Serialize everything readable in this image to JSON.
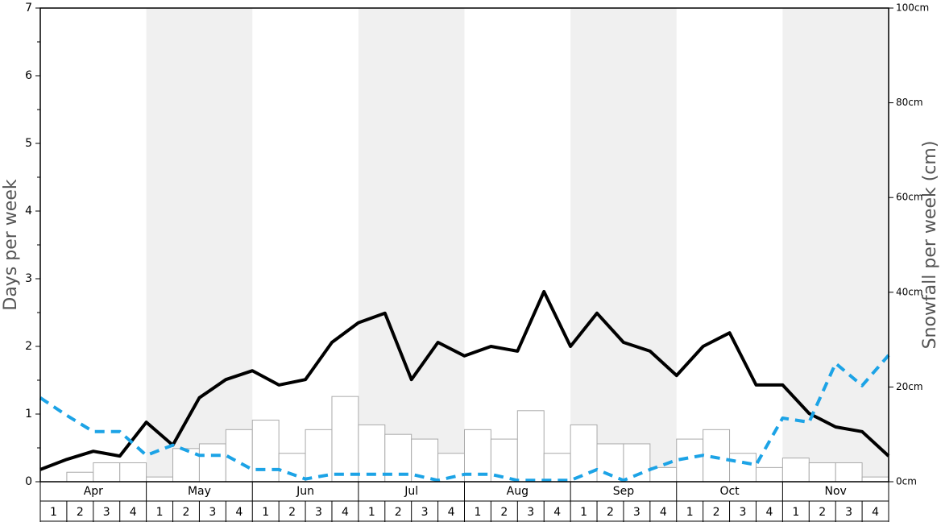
{
  "chart_data": {
    "type": "bar",
    "y_label": "Days per week",
    "y2_label": "Snowfall per week (cm)",
    "months": [
      "Apr",
      "May",
      "Jun",
      "Jul",
      "Aug",
      "Sep",
      "Oct",
      "Nov"
    ],
    "week_labels": [
      "1",
      "2",
      "3",
      "4"
    ],
    "ylim": [
      0,
      7
    ],
    "yticks": [
      0,
      1,
      2,
      3,
      4,
      5,
      6,
      7
    ],
    "yminor": [
      0.5,
      1.5,
      2.5,
      3.5,
      4.5,
      5.5,
      6.5
    ],
    "y2lim": [
      0,
      100
    ],
    "y2ticks": [
      {
        "value": 0,
        "label": "0cm"
      },
      {
        "value": 20,
        "label": "20cm"
      },
      {
        "value": 40,
        "label": "40cm"
      },
      {
        "value": 60,
        "label": "60cm"
      },
      {
        "value": 80,
        "label": "80cm"
      },
      {
        "value": 100,
        "label": "100cm"
      }
    ],
    "shade_color": "#f0f0f0",
    "bars": {
      "axis": "y2",
      "color": "#ffffff",
      "edge": "#aaaaaa",
      "values": [
        0,
        2,
        4,
        4,
        1,
        7,
        8,
        11,
        13,
        6,
        11,
        18,
        12,
        10,
        9,
        6,
        11,
        9,
        15,
        6,
        12,
        8,
        8,
        3,
        9,
        11,
        6,
        3,
        5,
        4,
        4,
        1
      ]
    },
    "series": [
      {
        "color": "#000000",
        "style": "solid",
        "values": [
          0.18,
          0.33,
          0.45,
          0.38,
          0.88,
          0.54,
          1.24,
          1.51,
          1.64,
          1.43,
          1.51,
          2.06,
          2.35,
          2.49,
          1.51,
          2.06,
          1.86,
          2.0,
          1.93,
          2.81,
          2.0,
          2.49,
          2.06,
          1.93,
          1.57,
          2.0,
          2.2,
          1.43,
          1.43,
          1.01,
          0.81,
          0.74,
          0.38
        ]
      },
      {
        "color": "#1ca3e6",
        "style": "dashed",
        "values": [
          1.24,
          0.98,
          0.74,
          0.74,
          0.39,
          0.54,
          0.39,
          0.39,
          0.18,
          0.18,
          0.04,
          0.11,
          0.11,
          0.11,
          0.11,
          0.02,
          0.11,
          0.11,
          0.02,
          0.02,
          0.02,
          0.18,
          0.02,
          0.18,
          0.32,
          0.39,
          0.32,
          0.25,
          0.94,
          0.88,
          1.75,
          1.42,
          1.87
        ]
      }
    ]
  }
}
